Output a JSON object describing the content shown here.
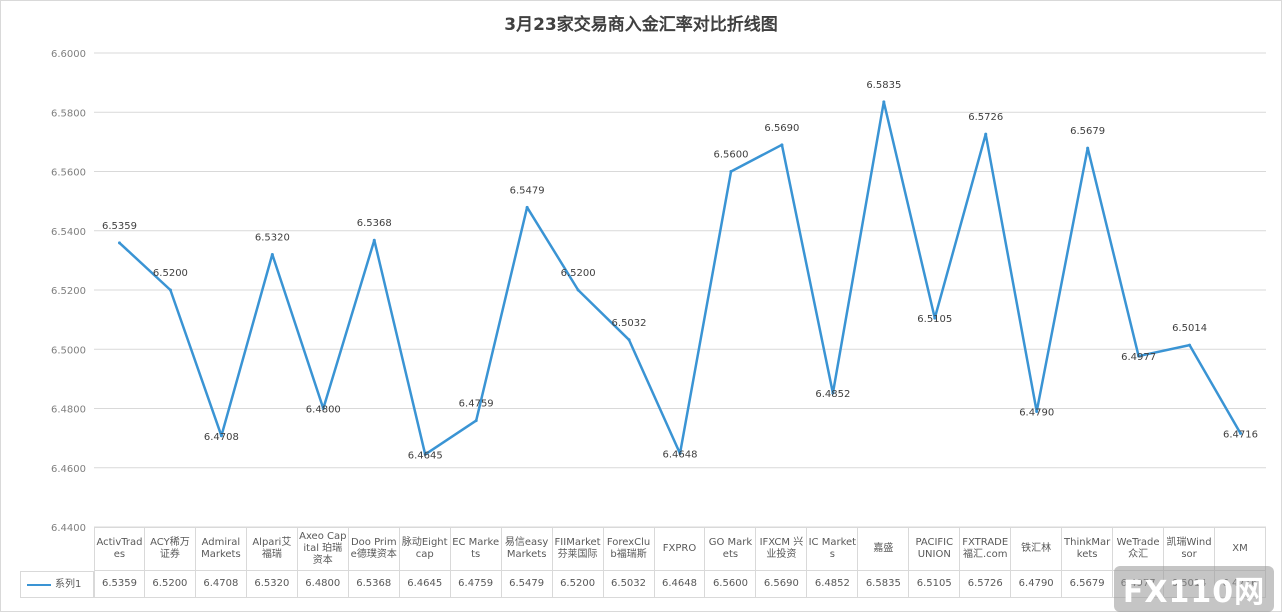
{
  "chart_data": {
    "type": "line",
    "title": "3月23家交易商入金汇率对比折线图",
    "categories": [
      "ActivTrades",
      "ACY稀万证券",
      "Admiral Markets",
      "Alpari艾福瑞",
      "Axeo Capital 珀瑞资本",
      "Doo Prime德璞资本",
      "脉动Eightcap",
      "EC Markets",
      "易信easyMarkets",
      "FIIMarket 芬莱国际",
      "ForexClub福瑞斯",
      "FXPRO",
      "GO Markets",
      "IFXCM 兴业投资",
      "IC Markets",
      "嘉盛",
      "PACIFIC UNION",
      "FXTRADE 福汇.com",
      "铁汇林",
      "ThinkMarkets",
      "WeTrade众汇",
      "凯瑞Windsor",
      "XM"
    ],
    "series": [
      {
        "name": "系列1",
        "color": "#3a94d4",
        "values": [
          6.5359,
          6.52,
          6.4708,
          6.532,
          6.48,
          6.5368,
          6.4645,
          6.4759,
          6.5479,
          6.52,
          6.5032,
          6.4648,
          6.56,
          6.569,
          6.4852,
          6.5835,
          6.5105,
          6.5726,
          6.479,
          6.5679,
          6.4977,
          6.5014,
          6.4716
        ]
      }
    ],
    "data_labels": [
      "6.5359",
      "6.5200",
      "6.4708",
      "6.5320",
      "6.4800",
      "6.5368",
      "6.4645",
      "6.4759",
      "6.5479",
      "6.5200",
      "6.5032",
      "6.4648",
      "6.5600",
      "6.5690",
      "6.4852",
      "6.5835",
      "6.5105",
      "6.5726",
      "6.4790",
      "6.5679",
      "6.4977",
      "6.5014",
      "6.4716"
    ],
    "ylim": [
      6.44,
      6.6
    ],
    "yticks": [
      "6.4400",
      "6.4600",
      "6.4800",
      "6.5000",
      "6.5200",
      "6.5400",
      "6.5600",
      "6.5800",
      "6.6000"
    ],
    "grid": true,
    "legend": "data-table",
    "xlabel": "",
    "ylabel": ""
  },
  "watermark": {
    "text": "FX110网"
  }
}
